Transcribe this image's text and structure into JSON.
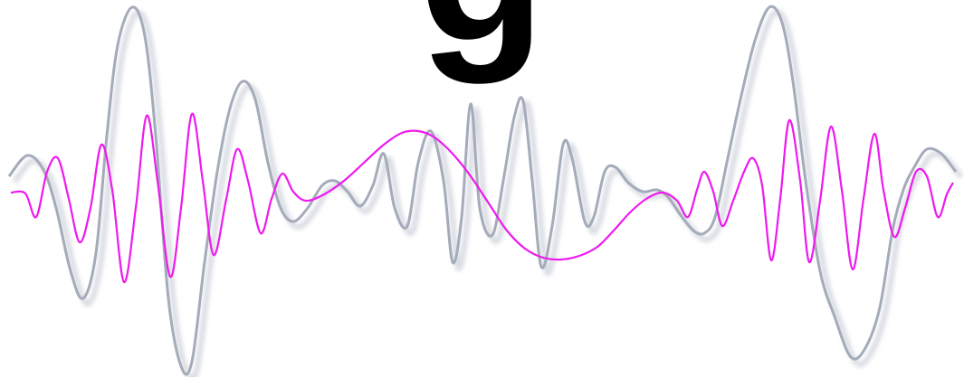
{
  "headline": {
    "text": "g",
    "color": "#000000"
  },
  "waveforms": [
    {
      "name": "",
      "color": "#a4abb9",
      "shadow_color": "#d9dce3",
      "role": "background-wave"
    },
    {
      "name": "",
      "color": "#ee1aee",
      "role": "foreground-wave"
    }
  ]
}
